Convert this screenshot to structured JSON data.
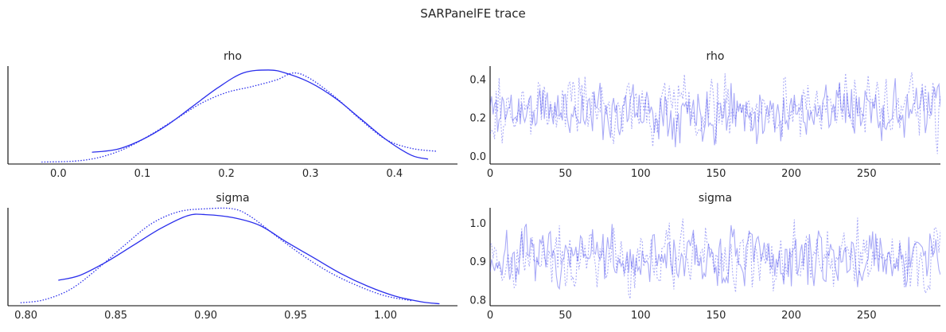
{
  "figure": {
    "title": "SARPanelFE trace"
  },
  "colors": {
    "series": "#2a2eec",
    "trace": "#2a2eec",
    "axes": "#000000",
    "text": "#262626",
    "background": "#ffffff"
  },
  "chart_data": [
    {
      "panel": "rho-density",
      "type": "line",
      "title": "rho",
      "xlabel": "",
      "ylabel": "",
      "xlim": [
        -0.06,
        0.475
      ],
      "ylim": [
        0,
        1
      ],
      "xticks": [
        "0.0",
        "0.1",
        "0.2",
        "0.3",
        "0.4"
      ],
      "xtick_values": [
        0.0,
        0.1,
        0.2,
        0.3,
        0.4
      ],
      "grid": false,
      "series": [
        {
          "style": "solid",
          "color": "#2a2eec",
          "x": [
            0.04,
            0.07,
            0.1,
            0.13,
            0.16,
            0.19,
            0.22,
            0.25,
            0.27,
            0.3,
            0.33,
            0.36,
            0.39,
            0.42,
            0.44
          ],
          "y": [
            0.12,
            0.15,
            0.25,
            0.4,
            0.59,
            0.78,
            0.93,
            0.96,
            0.93,
            0.83,
            0.67,
            0.46,
            0.25,
            0.09,
            0.05
          ]
        },
        {
          "style": "dotted",
          "color": "#2a2eec",
          "x": [
            -0.02,
            0.02,
            0.05,
            0.08,
            0.11,
            0.14,
            0.17,
            0.2,
            0.23,
            0.26,
            0.28,
            0.3,
            0.33,
            0.36,
            0.39,
            0.42,
            0.45
          ],
          "y": [
            0.02,
            0.03,
            0.07,
            0.16,
            0.3,
            0.46,
            0.62,
            0.73,
            0.79,
            0.86,
            0.93,
            0.87,
            0.68,
            0.45,
            0.25,
            0.16,
            0.13
          ]
        }
      ]
    },
    {
      "panel": "rho-trace",
      "type": "line",
      "title": "rho",
      "xlabel": "",
      "ylabel": "",
      "xlim": [
        0,
        299
      ],
      "ylim": [
        -0.04,
        0.47
      ],
      "xticks": [
        "0",
        "50",
        "100",
        "150",
        "200",
        "250"
      ],
      "xtick_values": [
        0,
        50,
        100,
        150,
        200,
        250
      ],
      "yticks": [
        "0.0",
        "0.2",
        "0.4"
      ],
      "ytick_values": [
        0.0,
        0.2,
        0.4
      ],
      "grid": false,
      "n_draws": 300,
      "series": [
        {
          "style": "solid",
          "color": "#2a2eec",
          "opacity": 0.4,
          "center": 0.24,
          "spread": 0.07,
          "min": 0.04,
          "max": 0.45,
          "seed": 11
        },
        {
          "style": "dotted",
          "color": "#2a2eec",
          "opacity": 0.4,
          "center": 0.25,
          "spread": 0.08,
          "min": -0.02,
          "max": 0.44,
          "seed": 29
        }
      ]
    },
    {
      "panel": "sigma-density",
      "type": "line",
      "title": "sigma",
      "xlabel": "",
      "ylabel": "",
      "xlim": [
        0.79,
        1.04
      ],
      "ylim": [
        0,
        1
      ],
      "xticks": [
        "0.80",
        "0.85",
        "0.90",
        "0.95",
        "1.00"
      ],
      "xtick_values": [
        0.8,
        0.85,
        0.9,
        0.95,
        1.0
      ],
      "grid": false,
      "series": [
        {
          "style": "solid",
          "color": "#2a2eec",
          "x": [
            0.818,
            0.83,
            0.845,
            0.86,
            0.875,
            0.89,
            0.9,
            0.915,
            0.93,
            0.945,
            0.96,
            0.975,
            0.99,
            1.005,
            1.02,
            1.03
          ],
          "y": [
            0.26,
            0.31,
            0.45,
            0.62,
            0.79,
            0.92,
            0.93,
            0.9,
            0.82,
            0.65,
            0.49,
            0.33,
            0.2,
            0.1,
            0.04,
            0.02
          ]
        },
        {
          "style": "dotted",
          "color": "#2a2eec",
          "x": [
            0.797,
            0.81,
            0.825,
            0.84,
            0.855,
            0.87,
            0.885,
            0.9,
            0.915,
            0.925,
            0.94,
            0.955,
            0.97,
            0.985,
            1.0,
            1.015
          ],
          "y": [
            0.03,
            0.06,
            0.17,
            0.38,
            0.62,
            0.84,
            0.96,
            0.99,
            0.99,
            0.91,
            0.7,
            0.5,
            0.33,
            0.2,
            0.1,
            0.05
          ]
        }
      ]
    },
    {
      "panel": "sigma-trace",
      "type": "line",
      "title": "sigma",
      "xlabel": "",
      "ylabel": "",
      "xlim": [
        0,
        299
      ],
      "ylim": [
        0.785,
        1.04
      ],
      "xticks": [
        "0",
        "50",
        "100",
        "150",
        "200",
        "250"
      ],
      "xtick_values": [
        0,
        50,
        100,
        150,
        200,
        250
      ],
      "yticks": [
        "0.8",
        "0.9",
        "1.0"
      ],
      "ytick_values": [
        0.8,
        0.9,
        1.0
      ],
      "grid": false,
      "n_draws": 300,
      "series": [
        {
          "style": "solid",
          "color": "#2a2eec",
          "opacity": 0.4,
          "center": 0.905,
          "spread": 0.035,
          "min": 0.82,
          "max": 1.03,
          "seed": 7
        },
        {
          "style": "dotted",
          "color": "#2a2eec",
          "opacity": 0.4,
          "center": 0.905,
          "spread": 0.04,
          "min": 0.795,
          "max": 1.02,
          "seed": 41
        }
      ]
    }
  ]
}
